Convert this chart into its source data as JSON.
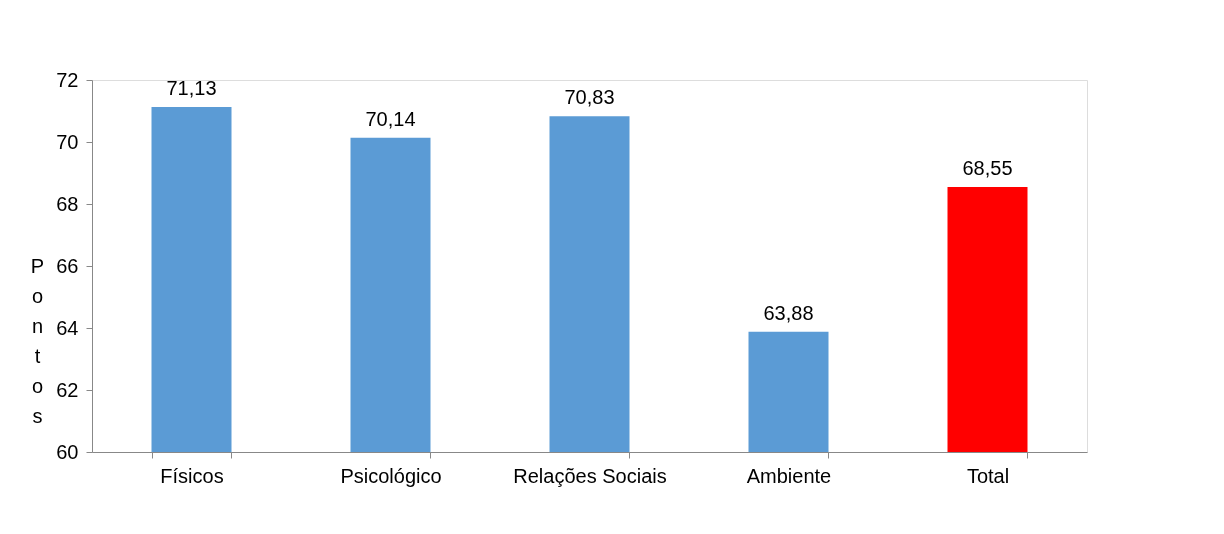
{
  "chart_data": {
    "type": "bar",
    "ylabel": "Pontos",
    "categories": [
      "Físicos",
      "Psicológico",
      "Relações Sociais",
      "Ambiente",
      "Total"
    ],
    "values": [
      71.13,
      70.14,
      70.83,
      63.88,
      68.55
    ],
    "colors": [
      "#5b9bd5",
      "#5b9bd5",
      "#5b9bd5",
      "#5b9bd5",
      "#ff0000"
    ],
    "value_labels": [
      "71,13",
      "70,14",
      "70,83",
      "63,88",
      "68,55"
    ],
    "ylim": [
      60,
      72
    ],
    "yticks": [
      60,
      62,
      64,
      66,
      68,
      70,
      72
    ],
    "grid": false
  }
}
